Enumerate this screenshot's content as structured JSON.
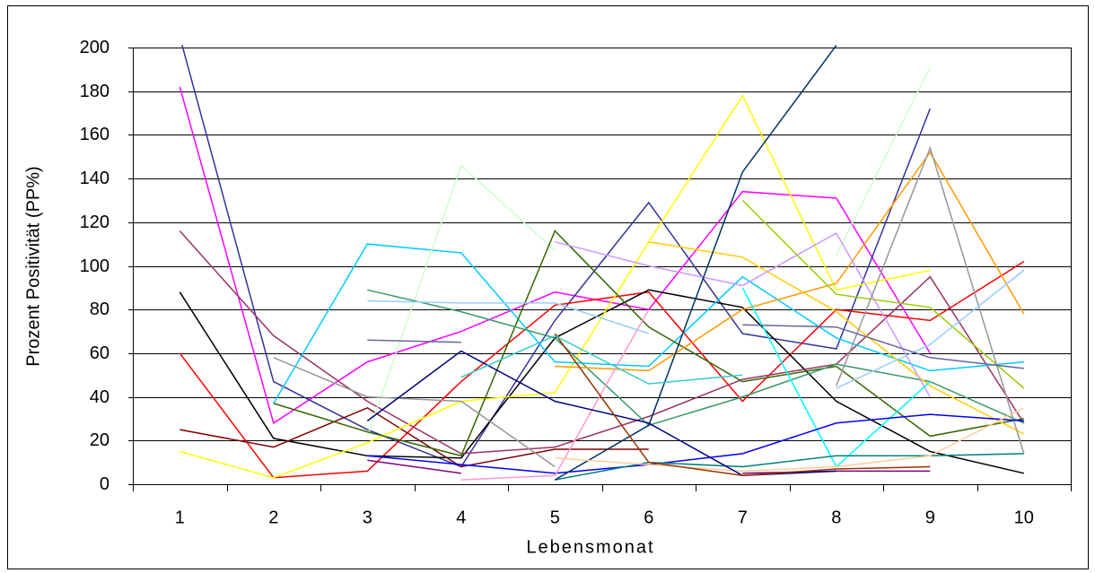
{
  "chart_data": {
    "type": "line",
    "xlabel": "Lebensmonat",
    "ylabel": "Prozent Positivität (PP%)",
    "categories": [
      "1",
      "2",
      "3",
      "4",
      "5",
      "6",
      "7",
      "8",
      "9",
      "10"
    ],
    "ylim": [
      0,
      200
    ],
    "yticks": [
      0,
      20,
      40,
      60,
      80,
      100,
      120,
      140,
      160,
      180,
      200
    ],
    "grid": true,
    "series": [
      {
        "color": "#FF00FF",
        "values": [
          182,
          28,
          56,
          70,
          88,
          80,
          134,
          131,
          60,
          null
        ]
      },
      {
        "color": "#333399",
        "values": [
          205,
          47,
          25,
          8,
          75,
          129,
          69,
          62,
          172,
          null
        ]
      },
      {
        "color": "#FF0000",
        "values": [
          60,
          3,
          6,
          47,
          82,
          88,
          38,
          80,
          75,
          102
        ]
      },
      {
        "color": "#000000",
        "values": [
          88,
          21,
          13,
          12,
          67,
          89,
          81,
          38,
          15,
          5
        ]
      },
      {
        "color": "#993366",
        "values": [
          116,
          68,
          38,
          14,
          17,
          31,
          48,
          55,
          95,
          28
        ]
      },
      {
        "color": "#800000",
        "values": [
          25,
          17,
          35,
          8,
          16,
          16,
          null,
          null,
          null,
          null
        ]
      },
      {
        "color": "#FFFF00",
        "values": [
          15,
          3,
          19,
          38,
          42,
          111,
          178,
          89,
          98,
          null
        ]
      },
      {
        "color": "#00CCFF",
        "values": [
          null,
          37,
          110,
          106,
          56,
          54,
          95,
          67,
          52,
          56
        ]
      },
      {
        "color": "#CCFFCC",
        "values": [
          null,
          null,
          22,
          146,
          107,
          null,
          null,
          105,
          191,
          null
        ]
      },
      {
        "color": "#336600",
        "values": [
          null,
          37,
          24,
          13,
          116,
          72,
          47,
          54,
          22,
          30
        ]
      },
      {
        "color": "#339966",
        "values": [
          null,
          null,
          89,
          79,
          67,
          27,
          40,
          55,
          47,
          28
        ]
      },
      {
        "color": "#FF9900",
        "values": [
          null,
          null,
          null,
          null,
          54,
          52,
          80,
          92,
          152,
          78
        ]
      },
      {
        "color": "#FFCC00",
        "values": [
          null,
          null,
          null,
          null,
          null,
          111,
          104,
          79,
          45,
          23
        ]
      },
      {
        "color": "#99CC00",
        "values": [
          null,
          null,
          null,
          null,
          null,
          null,
          130,
          87,
          81,
          44
        ]
      },
      {
        "color": "#CC99FF",
        "values": [
          null,
          null,
          null,
          null,
          111,
          100,
          91,
          115,
          40,
          null
        ]
      },
      {
        "color": "#969696",
        "values": [
          null,
          58,
          40,
          38,
          8,
          null,
          null,
          45,
          154,
          14
        ]
      },
      {
        "color": "#00FFFF",
        "values": [
          null,
          null,
          81,
          null,
          null,
          null,
          90,
          8,
          47,
          null
        ]
      },
      {
        "color": "#0000FF",
        "values": [
          null,
          null,
          13,
          9,
          5,
          9,
          14,
          28,
          32,
          29
        ]
      },
      {
        "color": "#008080",
        "values": [
          null,
          null,
          null,
          null,
          2,
          10,
          8,
          13,
          13,
          14
        ]
      },
      {
        "color": "#FF99CC",
        "values": [
          null,
          null,
          null,
          2,
          4,
          80,
          null,
          null,
          null,
          null
        ]
      },
      {
        "color": "#800080",
        "values": [
          null,
          null,
          11,
          5,
          null,
          null,
          5,
          6,
          6,
          null
        ]
      },
      {
        "color": "#003366",
        "values": [
          null,
          null,
          null,
          null,
          2,
          27,
          143,
          201,
          null,
          null
        ]
      },
      {
        "color": "#99CCFF",
        "values": [
          null,
          null,
          84,
          83,
          83,
          69,
          null,
          44,
          64,
          98
        ]
      },
      {
        "color": "#FFCC99",
        "values": [
          null,
          null,
          null,
          null,
          12,
          9,
          6,
          8,
          13,
          35
        ]
      },
      {
        "color": "#000080",
        "values": [
          null,
          null,
          29,
          61,
          38,
          28,
          4,
          6,
          null,
          null
        ]
      },
      {
        "color": "#993300",
        "values": [
          null,
          null,
          null,
          null,
          69,
          10,
          4,
          7,
          8,
          null
        ]
      },
      {
        "color": "#666699",
        "values": [
          null,
          null,
          66,
          65,
          null,
          null,
          73,
          72,
          58,
          53
        ]
      },
      {
        "color": "#33CCCC",
        "values": [
          null,
          null,
          null,
          49,
          68,
          46,
          50,
          null,
          null,
          null
        ]
      }
    ]
  }
}
